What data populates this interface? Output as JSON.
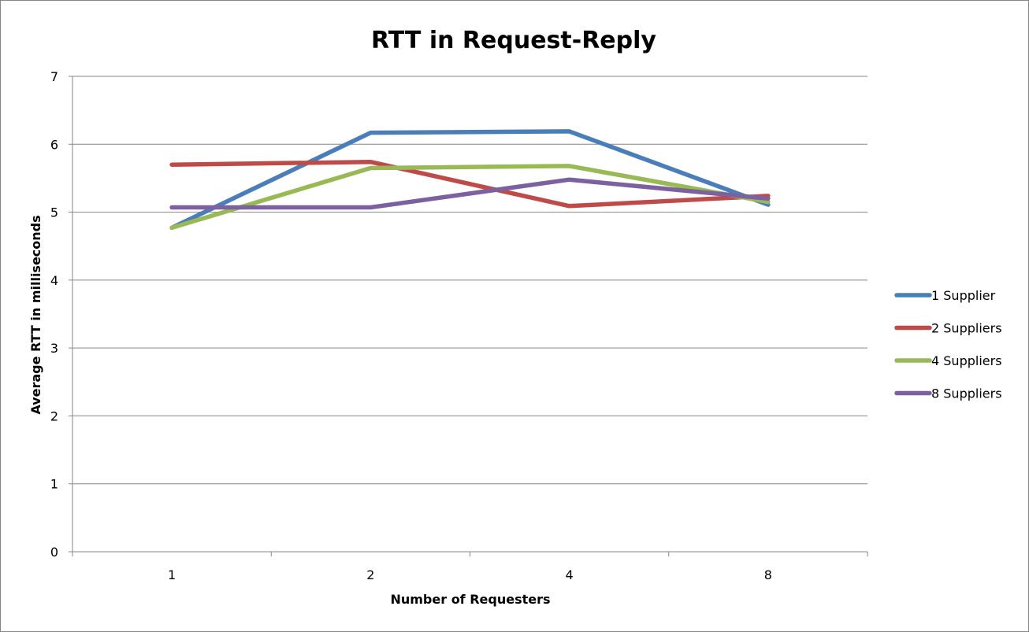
{
  "chart_data": {
    "type": "line",
    "title": "RTT in Request-Reply",
    "xlabel": "Number of Requesters",
    "ylabel": "Average RTT in milliseconds",
    "categories": [
      "1",
      "2",
      "4",
      "8"
    ],
    "ylim": [
      0,
      7
    ],
    "yticks": [
      "0",
      "1",
      "2",
      "3",
      "4",
      "5",
      "6",
      "7"
    ],
    "grid": true,
    "legend_position": "right",
    "series": [
      {
        "name": "1 Supplier",
        "color": "#4a7ebb",
        "values": [
          4.77,
          6.17,
          6.19,
          5.11
        ]
      },
      {
        "name": "2 Suppliers",
        "color": "#be4b48",
        "values": [
          5.7,
          5.74,
          5.09,
          5.24
        ]
      },
      {
        "name": "4 Suppliers",
        "color": "#98b954",
        "values": [
          4.77,
          5.65,
          5.68,
          5.15
        ]
      },
      {
        "name": "8 Suppliers",
        "color": "#7d60a0",
        "values": [
          5.07,
          5.07,
          5.48,
          5.2
        ]
      }
    ]
  }
}
